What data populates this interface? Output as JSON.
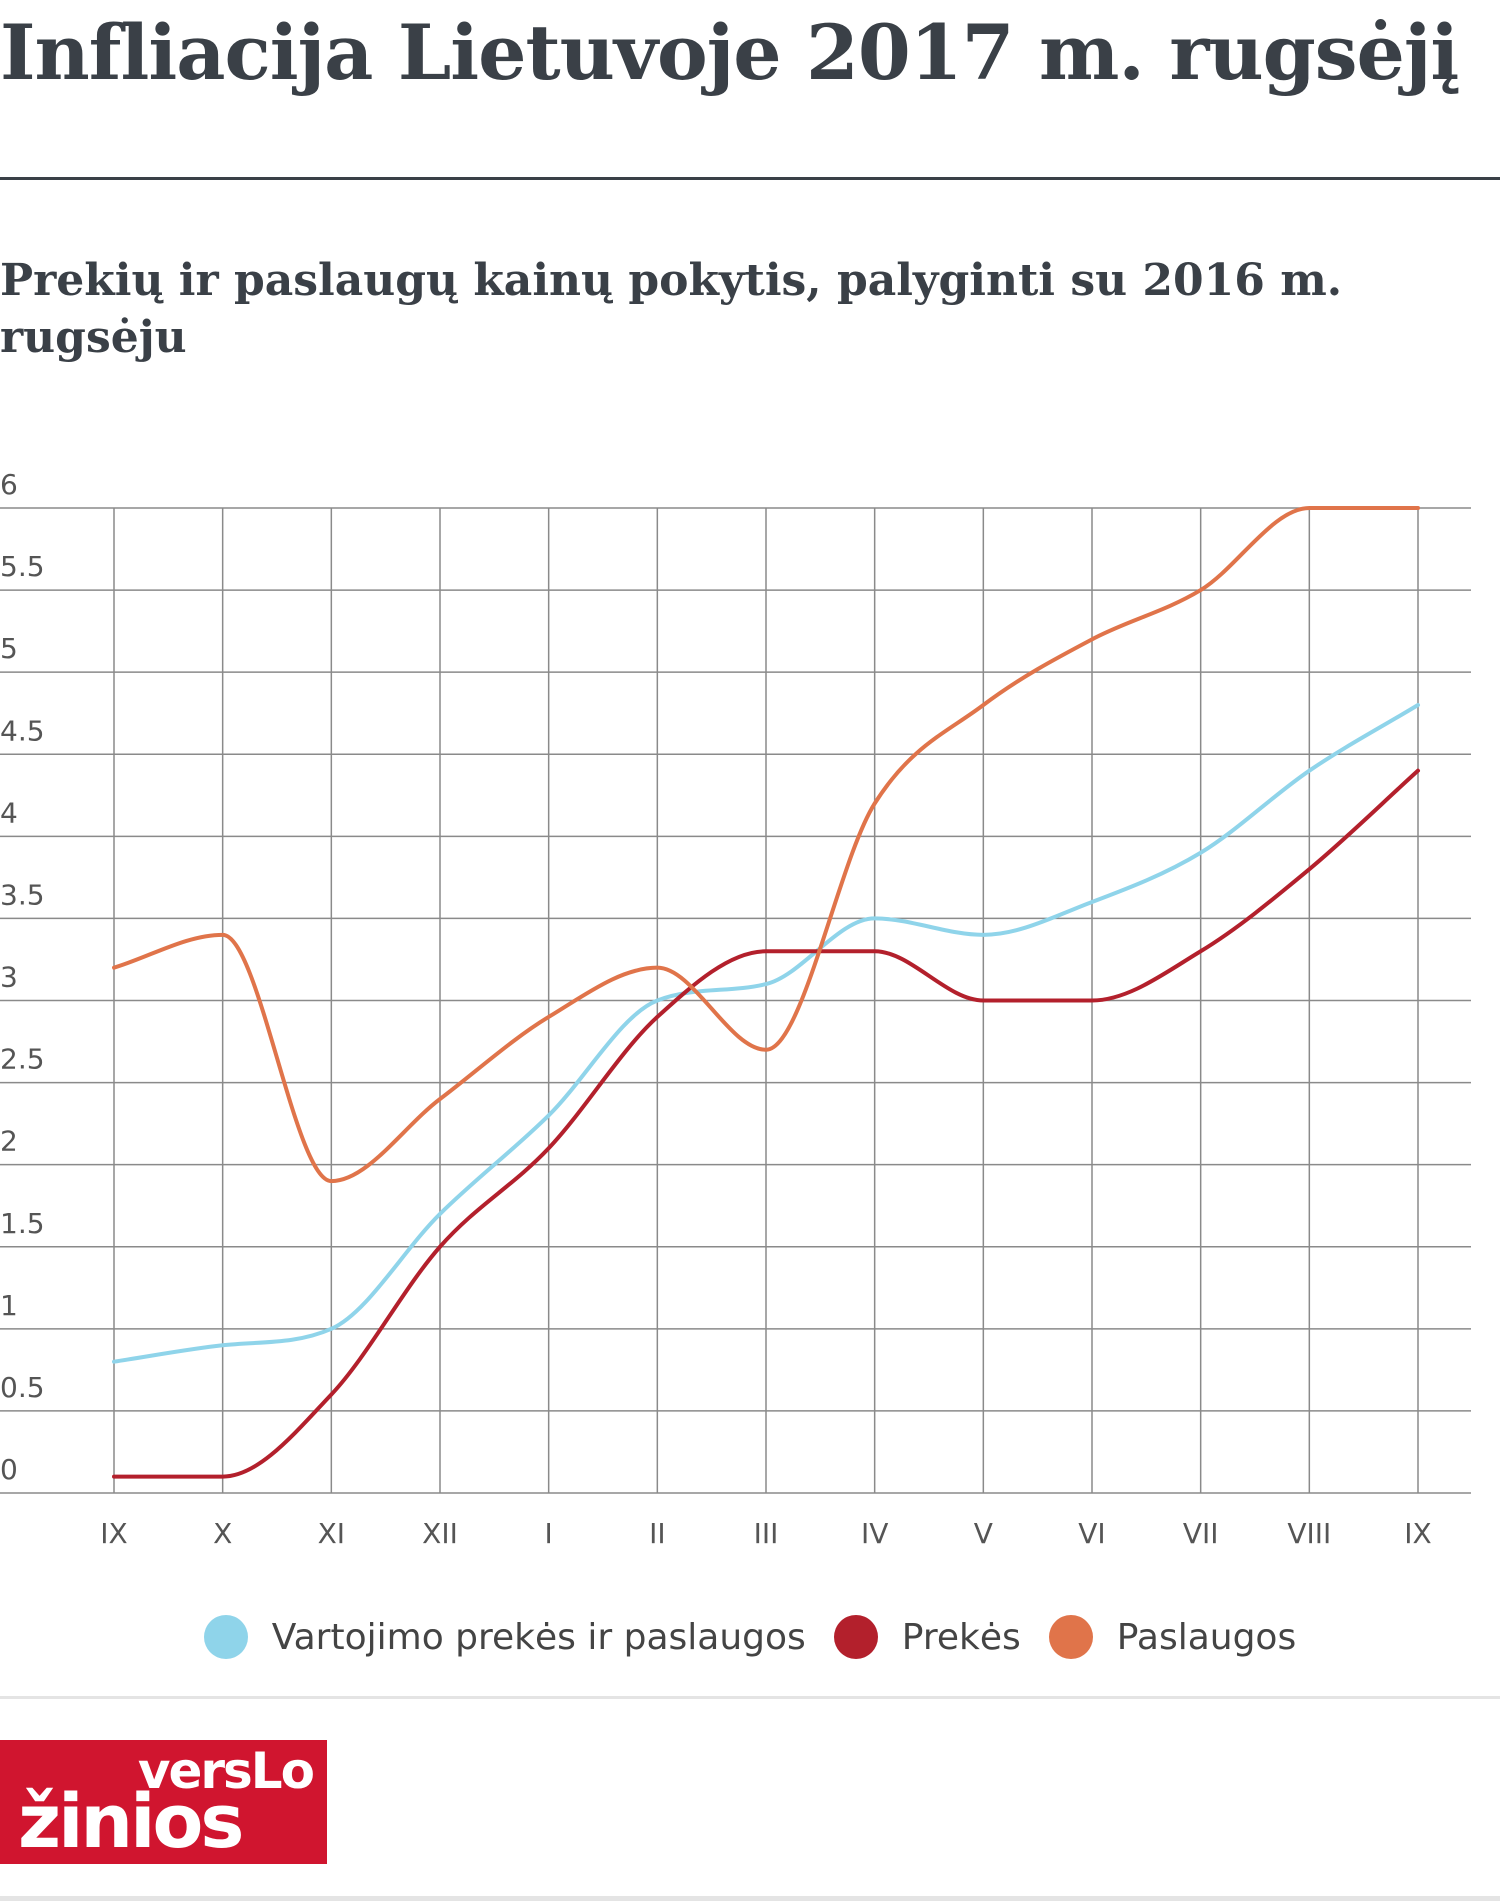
{
  "header": {
    "title": "Infliacija Lietuvoje 2017 m. rugsėjį"
  },
  "chart_data": {
    "type": "line",
    "title": "Prekių ir paslaugų kainų pokytis, palyginti su 2016 m. rugsėju",
    "xlabel": "",
    "ylabel": "",
    "categories": [
      "IX",
      "X",
      "XI",
      "XII",
      "I",
      "II",
      "III",
      "IV",
      "V",
      "VI",
      "VII",
      "VIII",
      "IX"
    ],
    "ylim": [
      0,
      6
    ],
    "yticks": [
      "0",
      "0.5",
      "1",
      "1.5",
      "2",
      "2.5",
      "3",
      "3.5",
      "4",
      "4.5",
      "5",
      "5.5",
      "6"
    ],
    "grid": true,
    "legend_position": "bottom",
    "series": [
      {
        "name": "Vartojimo prekės ir paslaugos",
        "color": "#8fd4ea",
        "values": [
          0.8,
          0.9,
          1.0,
          1.7,
          2.3,
          3.0,
          3.1,
          3.5,
          3.4,
          3.6,
          3.9,
          4.4,
          4.8
        ]
      },
      {
        "name": "Prekės",
        "color": "#b3202c",
        "values": [
          0.1,
          0.1,
          0.6,
          1.5,
          2.1,
          2.9,
          3.3,
          3.3,
          3.0,
          3.0,
          3.3,
          3.8,
          4.4
        ]
      },
      {
        "name": "Paslaugos",
        "color": "#e0744a",
        "values": [
          3.2,
          3.4,
          1.9,
          2.4,
          2.9,
          3.2,
          2.7,
          4.2,
          4.8,
          5.2,
          5.5,
          6.0,
          6.0
        ]
      }
    ]
  },
  "logo": {
    "line1": "versLo",
    "line2": "žinios"
  }
}
